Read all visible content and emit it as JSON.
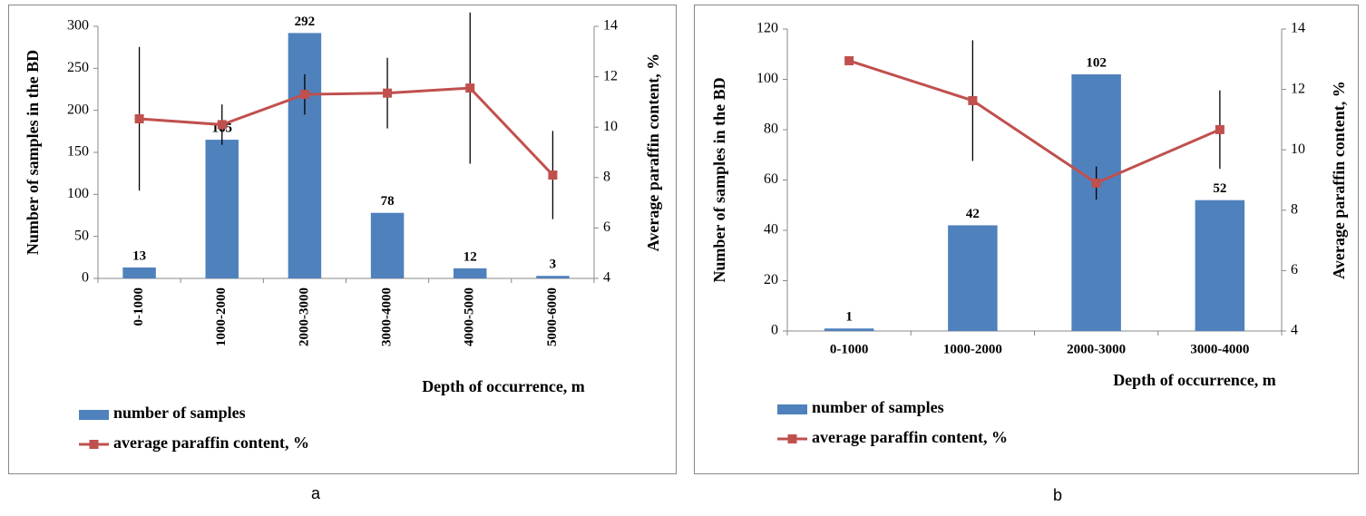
{
  "chart_data": [
    {
      "type": "bar",
      "panel_label": "a",
      "xlabel": "Depth of occurrence, m",
      "ylabel": "Number of samples in the BD",
      "y2label": "Average paraffin content, %",
      "categories": [
        "0-1000",
        "1000-2000",
        "2000-3000",
        "3000-4000",
        "4000-5000",
        "5000-6000"
      ],
      "x_label_rotation": 90,
      "series": [
        {
          "name": "number of samples",
          "type": "bar",
          "color": "#4f81bd",
          "values": [
            13,
            165,
            292,
            78,
            12,
            3
          ]
        },
        {
          "name": "average paraffin content, %",
          "type": "line",
          "axis": "y2",
          "color": "#c0504d",
          "values": [
            10.33,
            10.1,
            11.3,
            11.35,
            11.55,
            8.1
          ],
          "errors": [
            2.85,
            0.8,
            0.8,
            1.4,
            3.0,
            1.75
          ]
        }
      ],
      "ylim": [
        0,
        300
      ],
      "yticks": [
        0,
        50,
        100,
        150,
        200,
        250,
        300
      ],
      "y2lim": [
        4,
        14
      ],
      "y2ticks": [
        4,
        6,
        8,
        10,
        12,
        14
      ],
      "grid": false
    },
    {
      "type": "bar",
      "panel_label": "b",
      "xlabel": "Depth of occurrence, m",
      "ylabel": "Number of samples in the BD",
      "y2label": "Average paraffin content, %",
      "categories": [
        "0-1000",
        "1000-2000",
        "2000-3000",
        "3000-4000"
      ],
      "x_label_rotation": 0,
      "series": [
        {
          "name": "number of samples",
          "type": "bar",
          "color": "#4f81bd",
          "values": [
            1,
            42,
            102,
            52
          ]
        },
        {
          "name": "average paraffin content, %",
          "type": "line",
          "axis": "y2",
          "color": "#c0504d",
          "values": [
            12.95,
            11.63,
            8.9,
            10.67
          ],
          "errors": [
            null,
            2.0,
            0.55,
            1.3
          ]
        }
      ],
      "ylim": [
        0,
        120
      ],
      "yticks": [
        0,
        20,
        40,
        60,
        80,
        100,
        120
      ],
      "y2lim": [
        4,
        14
      ],
      "y2ticks": [
        4,
        6,
        8,
        10,
        12,
        14
      ],
      "grid": false
    }
  ]
}
